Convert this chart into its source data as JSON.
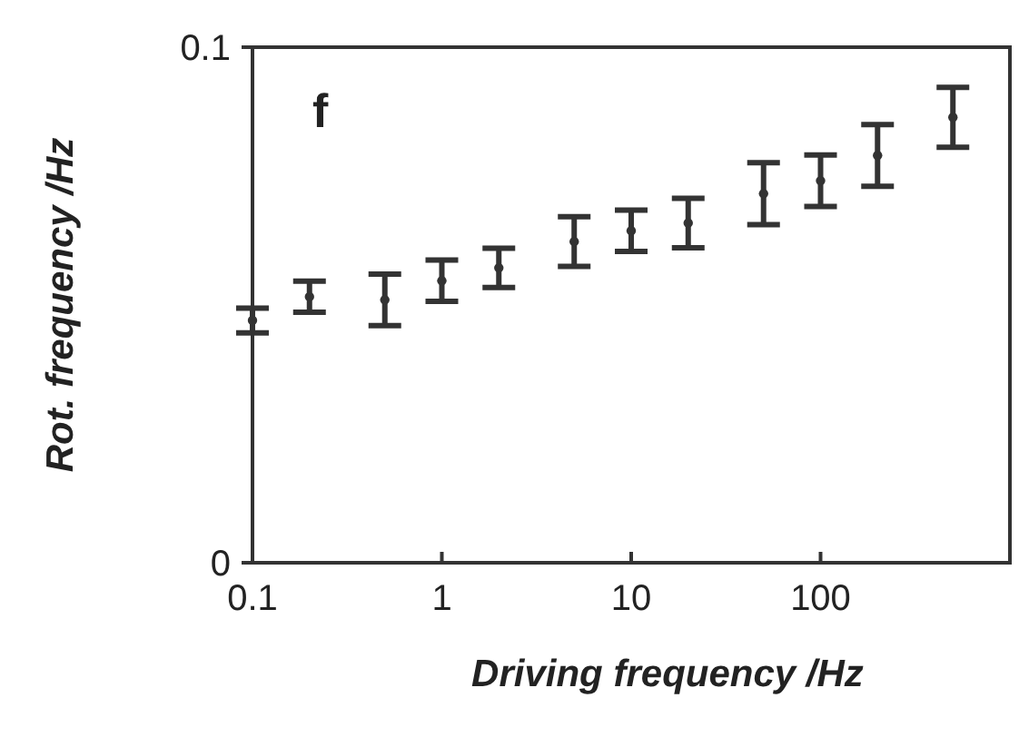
{
  "chart_data": {
    "type": "scatter",
    "xlabel": "Driving frequency /Hz",
    "ylabel": "Rot. frequency /Hz",
    "annotations": [
      "f"
    ],
    "x": [
      0.1,
      0.2,
      0.5,
      1,
      2,
      5,
      10,
      20,
      50,
      100,
      200,
      500
    ],
    "values": [
      0.047,
      0.0516,
      0.051,
      0.0547,
      0.0572,
      0.0623,
      0.0644,
      0.0659,
      0.0716,
      0.0741,
      0.079,
      0.0864
    ],
    "errors": [
      0.0024,
      0.003,
      0.005,
      0.004,
      0.0038,
      0.0048,
      0.004,
      0.0048,
      0.006,
      0.005,
      0.006,
      0.0058
    ],
    "color": "#333333",
    "log": "x",
    "xlim": [
      0.1,
      1000
    ],
    "xticks": [
      0.1,
      1,
      10,
      100
    ],
    "ylim": [
      0,
      0.1
    ],
    "yticks": [
      0,
      0.1
    ]
  }
}
